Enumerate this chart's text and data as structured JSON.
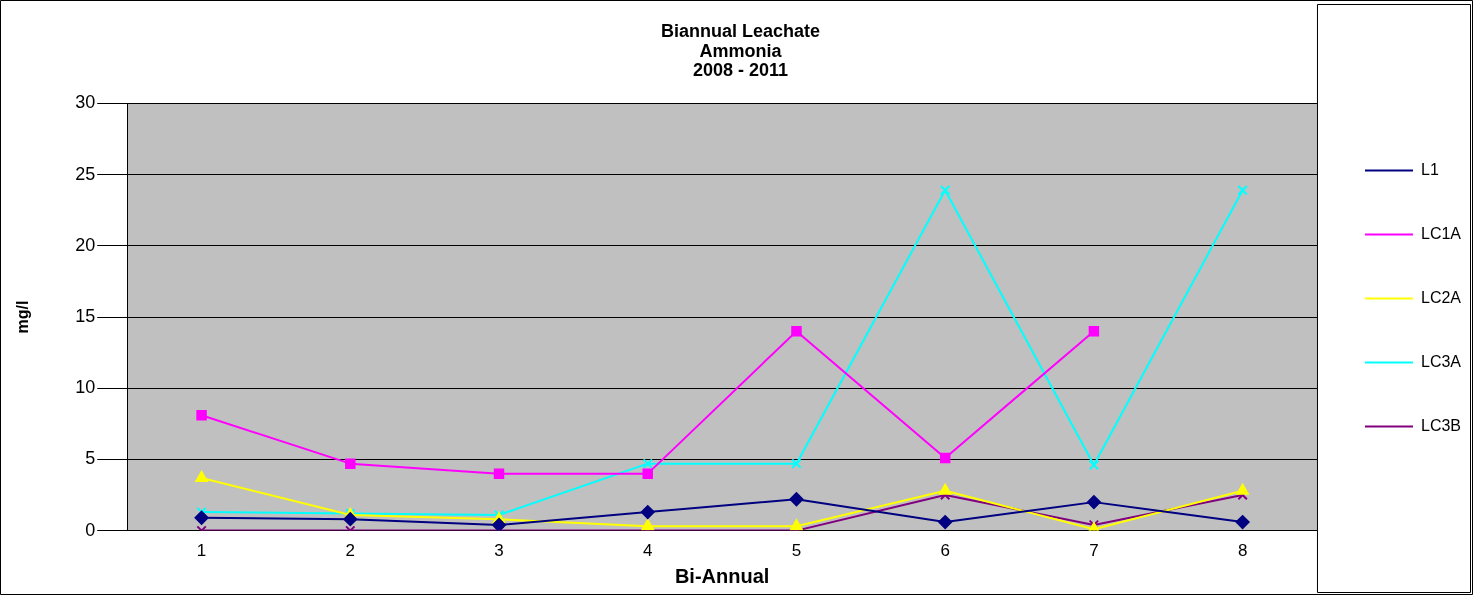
{
  "chart_data": {
    "type": "line",
    "title": "Biannual Leachate\nAmmonia\n2008 - 2011",
    "xlabel": "Bi-Annual",
    "ylabel": "mg/l",
    "categories": [
      "1",
      "2",
      "3",
      "4",
      "5",
      "6",
      "7",
      "8"
    ],
    "series": [
      {
        "name": "L1",
        "color": "#000080",
        "marker": "diamond",
        "values": [
          0.9,
          0.8,
          0.4,
          1.3,
          2.2,
          0.6,
          2.0,
          0.6
        ]
      },
      {
        "name": "LC1A",
        "color": "#ff00ff",
        "marker": "square",
        "values": [
          8.1,
          4.7,
          4.0,
          4.0,
          14.0,
          5.1,
          14.0,
          null
        ]
      },
      {
        "name": "LC2A",
        "color": "#ffff00",
        "marker": "triangle",
        "values": [
          3.7,
          1.1,
          0.8,
          0.3,
          0.3,
          2.8,
          0.1,
          2.8
        ]
      },
      {
        "name": "LC3A",
        "color": "#00ffff",
        "marker": "cross",
        "values": [
          1.3,
          1.2,
          1.1,
          4.7,
          4.7,
          23.9,
          4.6,
          23.9
        ]
      },
      {
        "name": "LC3B",
        "color": "#800080",
        "marker": "cross",
        "values": [
          0,
          0,
          0,
          0,
          0,
          2.5,
          0.4,
          2.5
        ]
      }
    ],
    "ylim": [
      0,
      30
    ],
    "yticks": [
      0,
      5,
      10,
      15,
      20,
      25,
      30
    ],
    "grid": "y",
    "legend": "right",
    "line_style": "solid"
  }
}
